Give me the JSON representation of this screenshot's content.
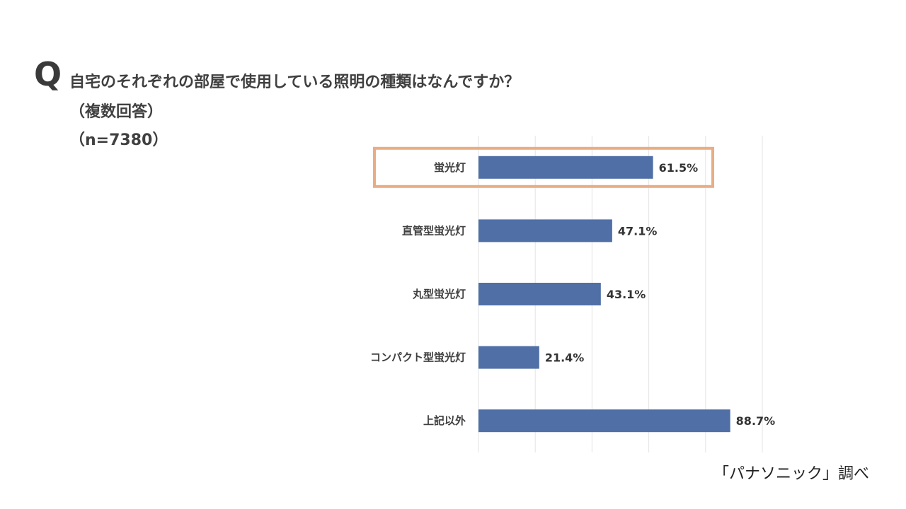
{
  "question": {
    "mark": "Q",
    "title": "自宅のそれぞれの部屋で使用している照明の種類はなんですか？",
    "subtitle": "（複数回答）",
    "sample": "（n=7380）"
  },
  "chart_data": {
    "type": "bar",
    "orientation": "horizontal",
    "categories": [
      "蛍光灯",
      "直管型蛍光灯",
      "丸型蛍光灯",
      "コンパクト型蛍光灯",
      "上記以外"
    ],
    "values": [
      61.5,
      47.1,
      43.1,
      21.4,
      88.7
    ],
    "value_labels": [
      "61.5%",
      "47.1%",
      "43.1%",
      "21.4%",
      "88.7%"
    ],
    "xlim": [
      0,
      100
    ],
    "grid": true,
    "highlighted_category": "蛍光灯",
    "bar_color": "#4f6fa6",
    "highlight_color": "#e9ad83"
  },
  "source": "「パナソニック」調べ"
}
